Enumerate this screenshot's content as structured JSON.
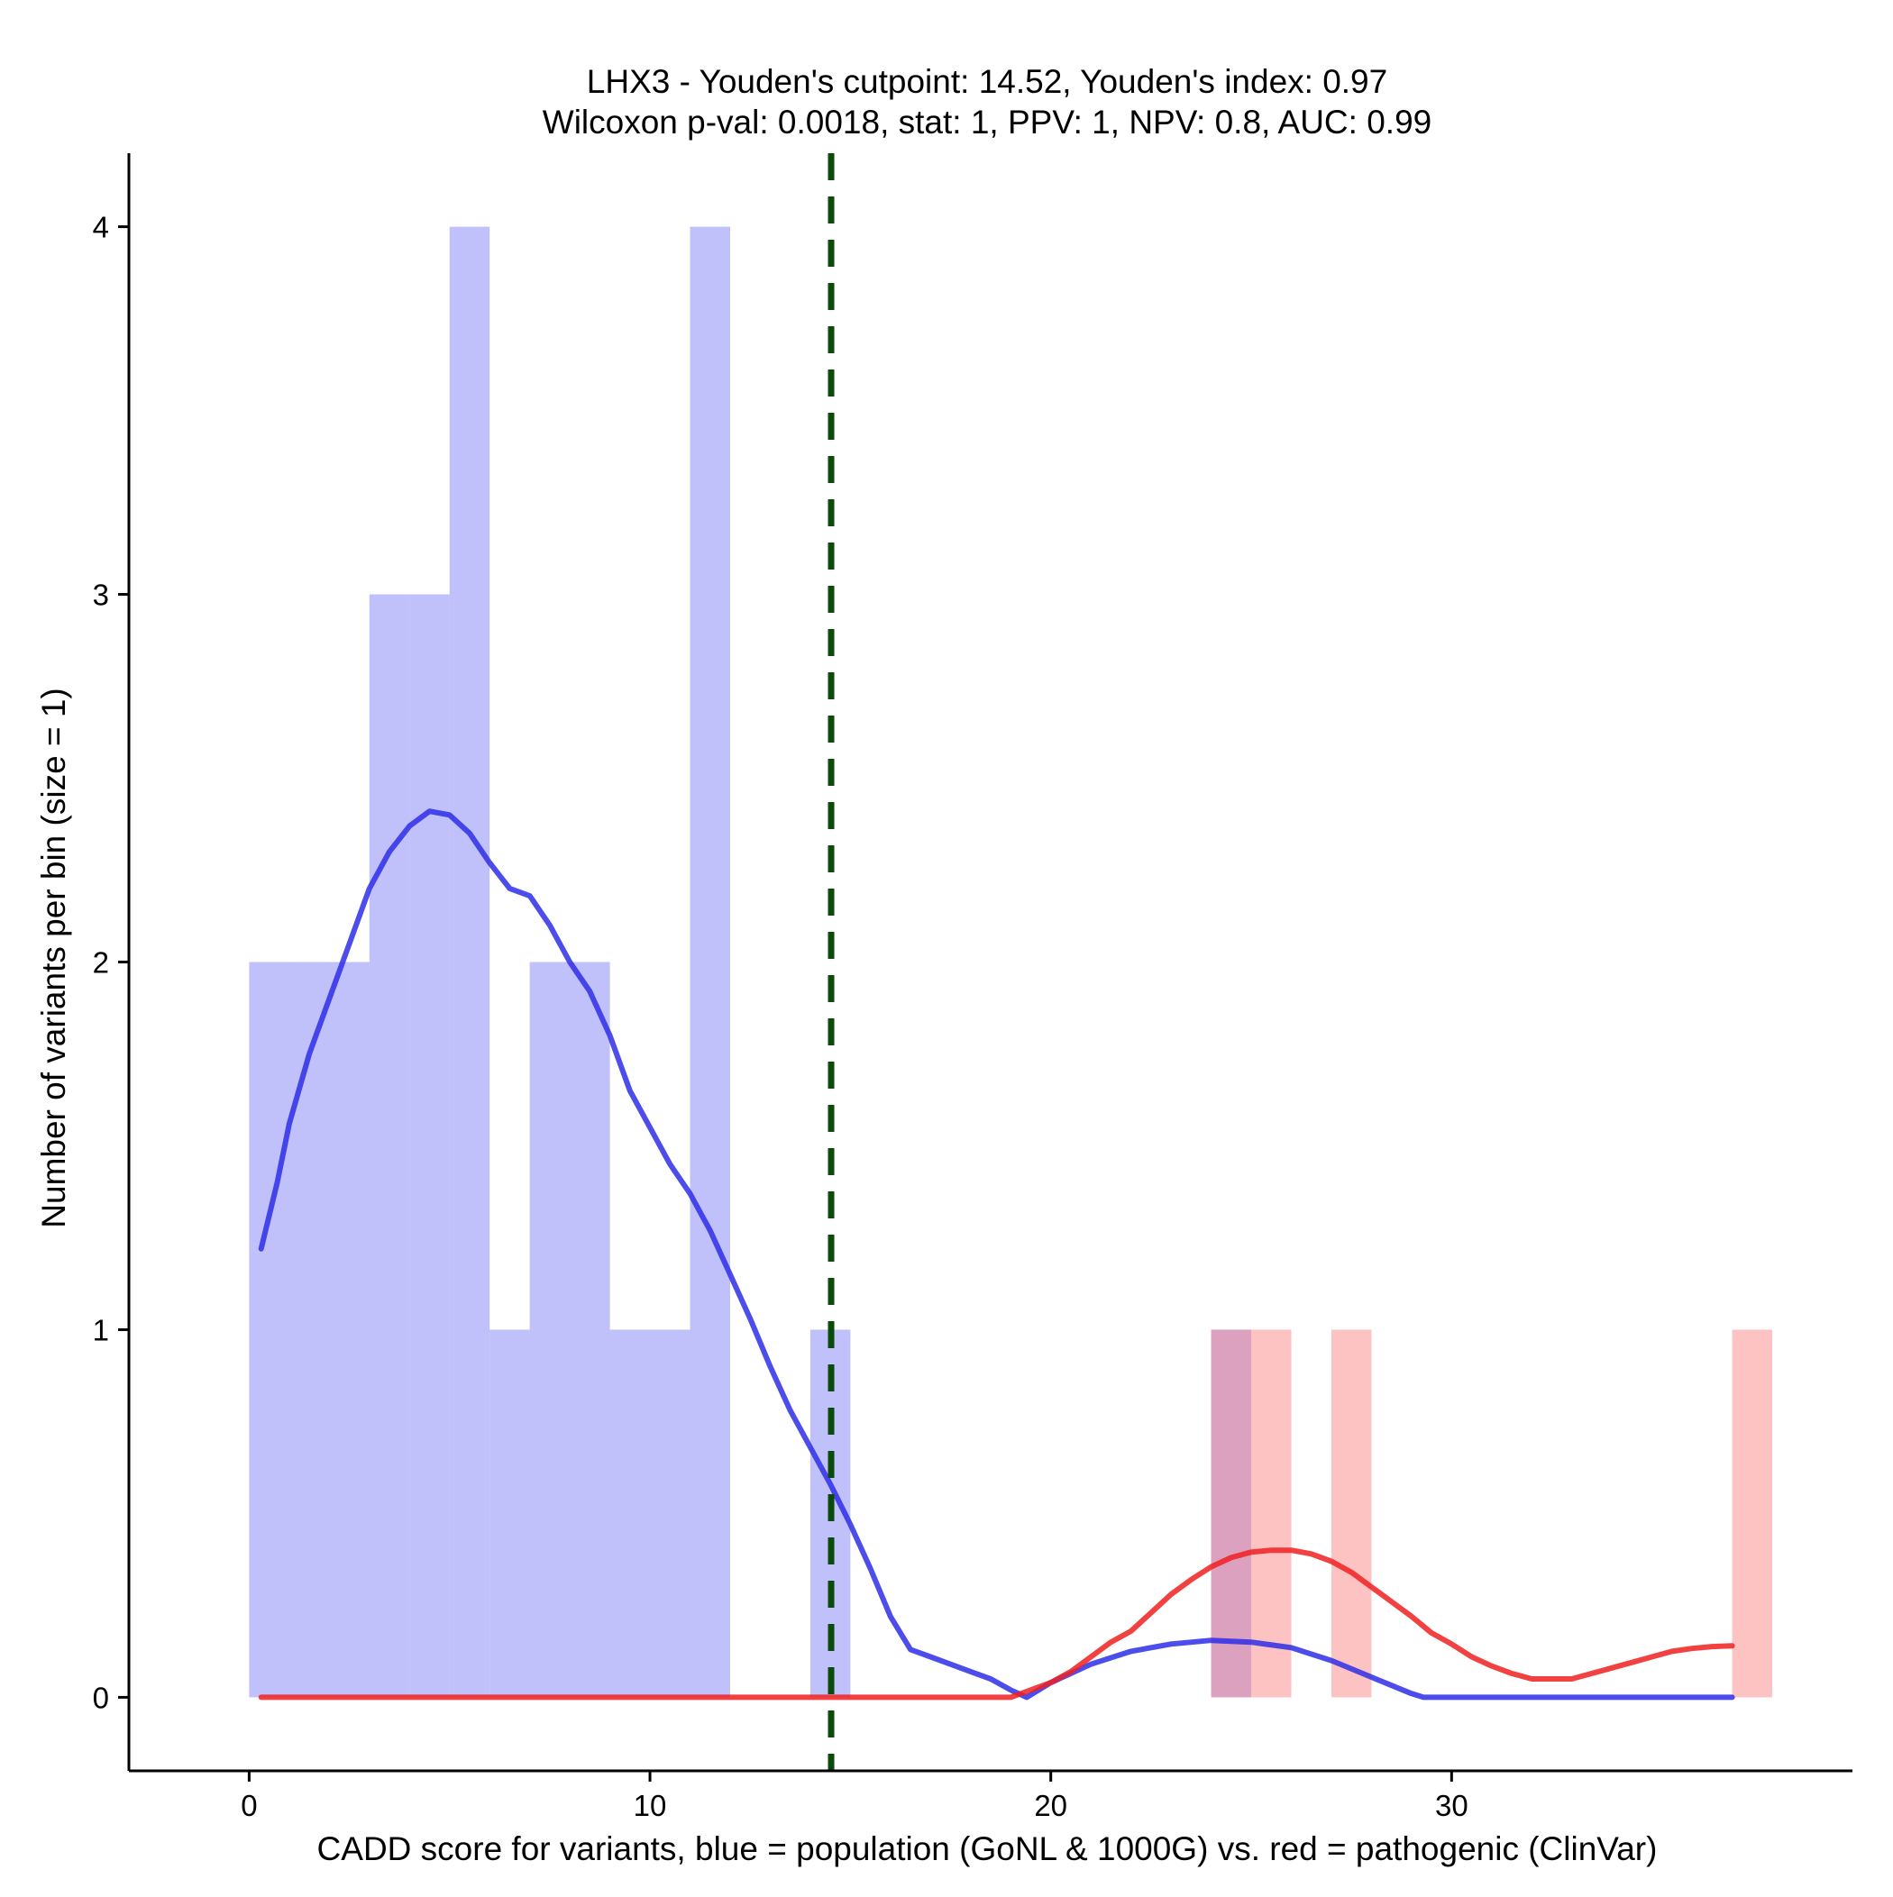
{
  "chart_data": {
    "type": "histogram",
    "title": "LHX3 - Youden's cutpoint: 14.52, Youden's index: 0.97",
    "subtitle": "Wilcoxon p-val: 0.0018, stat: 1, PPV: 1, NPV: 0.8, AUC: 0.99",
    "xlabel": "CADD score for variants, blue = population (GoNL & 1000G) vs. red = pathogenic (ClinVar)",
    "ylabel": "Number of variants per bin (size = 1)",
    "xlim": [
      -3,
      40
    ],
    "ylim": [
      -0.2,
      4.2
    ],
    "x_ticks": [
      0,
      10,
      20,
      30
    ],
    "x_tick_labels": [
      "0",
      "10",
      "20",
      "30"
    ],
    "y_ticks": [
      0,
      1,
      2,
      3,
      4
    ],
    "y_tick_labels": [
      "0",
      "1",
      "2",
      "3",
      "4"
    ],
    "bin_size": 1,
    "cutpoint": 14.52,
    "series": [
      {
        "name": "population (GoNL & 1000G)",
        "color": "#7b7bf5",
        "curve_color": "#2e2ee8",
        "bins": [
          {
            "start": 0,
            "count": 2
          },
          {
            "start": 1,
            "count": 2
          },
          {
            "start": 2,
            "count": 2
          },
          {
            "start": 3,
            "count": 3
          },
          {
            "start": 4,
            "count": 3
          },
          {
            "start": 5,
            "count": 4
          },
          {
            "start": 6,
            "count": 1
          },
          {
            "start": 7,
            "count": 2
          },
          {
            "start": 8,
            "count": 2
          },
          {
            "start": 9,
            "count": 1
          },
          {
            "start": 10,
            "count": 1
          },
          {
            "start": 11,
            "count": 4
          },
          {
            "start": 14,
            "count": 1
          },
          {
            "start": 24,
            "count": 1
          }
        ],
        "density_curve": [
          [
            0.3,
            1.22
          ],
          [
            0.7,
            1.4
          ],
          [
            1.0,
            1.56
          ],
          [
            1.5,
            1.75
          ],
          [
            2.0,
            1.9
          ],
          [
            2.5,
            2.05
          ],
          [
            3.0,
            2.2
          ],
          [
            3.5,
            2.3
          ],
          [
            4.0,
            2.37
          ],
          [
            4.5,
            2.41
          ],
          [
            5.0,
            2.4
          ],
          [
            5.5,
            2.35
          ],
          [
            6.0,
            2.27
          ],
          [
            6.5,
            2.2
          ],
          [
            7.0,
            2.18
          ],
          [
            7.5,
            2.1
          ],
          [
            8.0,
            2.0
          ],
          [
            8.5,
            1.92
          ],
          [
            9.0,
            1.8
          ],
          [
            9.5,
            1.65
          ],
          [
            10.0,
            1.55
          ],
          [
            10.5,
            1.45
          ],
          [
            11.0,
            1.37
          ],
          [
            11.5,
            1.27
          ],
          [
            12.0,
            1.15
          ],
          [
            12.5,
            1.03
          ],
          [
            13.0,
            0.9
          ],
          [
            13.5,
            0.78
          ],
          [
            14.0,
            0.68
          ],
          [
            14.5,
            0.58
          ],
          [
            15.0,
            0.47
          ],
          [
            15.5,
            0.35
          ],
          [
            16.0,
            0.22
          ],
          [
            16.5,
            0.13
          ],
          [
            17.0,
            0.11
          ],
          [
            17.5,
            0.09
          ],
          [
            18.0,
            0.07
          ],
          [
            18.5,
            0.05
          ],
          [
            19.0,
            0.02
          ],
          [
            19.4,
            0.0
          ],
          [
            20.0,
            0.04
          ],
          [
            21.0,
            0.09
          ],
          [
            22.0,
            0.125
          ],
          [
            23.0,
            0.145
          ],
          [
            24.0,
            0.155
          ],
          [
            25.0,
            0.15
          ],
          [
            26.0,
            0.135
          ],
          [
            27.0,
            0.1
          ],
          [
            28.0,
            0.055
          ],
          [
            29.0,
            0.01
          ],
          [
            29.3,
            0.0
          ],
          [
            37.0,
            0.0
          ]
        ]
      },
      {
        "name": "pathogenic (ClinVar)",
        "color": "#fa7f7f",
        "curve_color": "#f02020",
        "bins": [
          {
            "start": 24,
            "count": 1
          },
          {
            "start": 25,
            "count": 1
          },
          {
            "start": 27,
            "count": 1
          },
          {
            "start": 37,
            "count": 1
          }
        ],
        "density_curve": [
          [
            0.3,
            0.0
          ],
          [
            19.0,
            0.0
          ],
          [
            19.5,
            0.02
          ],
          [
            20.0,
            0.04
          ],
          [
            20.5,
            0.07
          ],
          [
            21.0,
            0.11
          ],
          [
            21.5,
            0.15
          ],
          [
            22.0,
            0.18
          ],
          [
            22.5,
            0.23
          ],
          [
            23.0,
            0.28
          ],
          [
            23.5,
            0.32
          ],
          [
            24.0,
            0.355
          ],
          [
            24.5,
            0.38
          ],
          [
            25.0,
            0.395
          ],
          [
            25.5,
            0.4
          ],
          [
            26.0,
            0.4
          ],
          [
            26.5,
            0.39
          ],
          [
            27.0,
            0.37
          ],
          [
            27.5,
            0.34
          ],
          [
            28.0,
            0.3
          ],
          [
            28.5,
            0.26
          ],
          [
            29.0,
            0.22
          ],
          [
            29.5,
            0.175
          ],
          [
            30.0,
            0.145
          ],
          [
            30.5,
            0.11
          ],
          [
            31.0,
            0.085
          ],
          [
            31.5,
            0.065
          ],
          [
            32.0,
            0.05
          ],
          [
            32.5,
            0.05
          ],
          [
            33.0,
            0.05
          ],
          [
            33.5,
            0.065
          ],
          [
            34.0,
            0.08
          ],
          [
            34.5,
            0.095
          ],
          [
            35.0,
            0.11
          ],
          [
            35.5,
            0.125
          ],
          [
            36.0,
            0.133
          ],
          [
            36.5,
            0.138
          ],
          [
            37.0,
            0.14
          ]
        ]
      }
    ]
  }
}
